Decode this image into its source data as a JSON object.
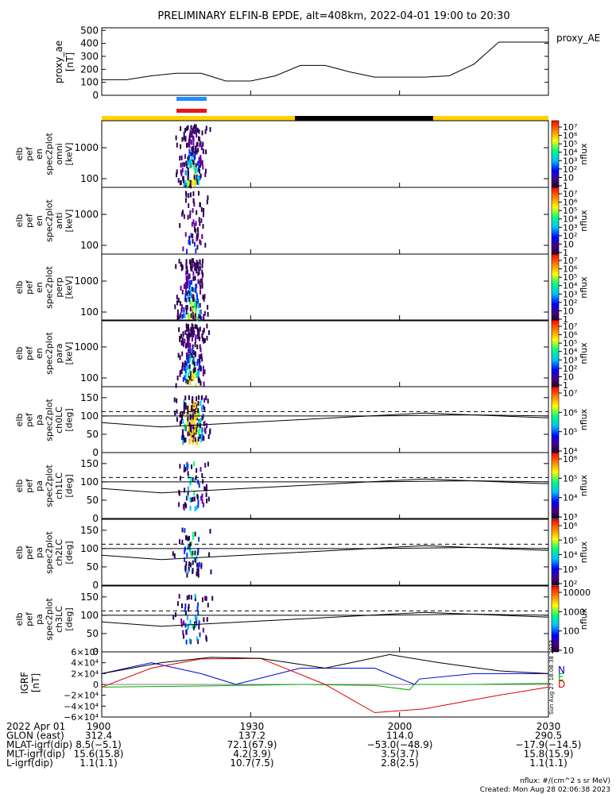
{
  "title": "PRELIMINARY ELFIN-B EPDE, alt=408km, 2022-04-01 19:00 to 20:30",
  "proxy_panel": {
    "ylabel": [
      "proxy_ae",
      "[nT]"
    ],
    "legend": "proxy_AE",
    "yticks": [
      "500",
      "400",
      "300",
      "200",
      "100",
      "0"
    ],
    "ylim": [
      0,
      520
    ]
  },
  "indicator_bars": [
    {
      "color": "#1f8fff",
      "label": ""
    },
    {
      "color": "#e8141c",
      "label": ""
    }
  ],
  "shadow_bar": {
    "sunlit_color": "#ffd200",
    "eclipse_color": "#000000"
  },
  "spectrogram_panels": [
    {
      "ylabel": [
        "elb",
        "pef",
        "en",
        "spec2plot",
        "omni",
        "[keV]"
      ],
      "yticks": [
        "1000",
        "100"
      ],
      "cb_ticks": [
        "10⁷",
        "10⁶",
        "10⁵",
        "10⁴",
        "10³",
        "10²",
        "10",
        "1"
      ],
      "cb_label": "nflux"
    },
    {
      "ylabel": [
        "elb",
        "pef",
        "en",
        "spec2plot",
        "anti",
        "[keV]"
      ],
      "yticks": [
        "1000",
        "100"
      ],
      "cb_ticks": [
        "10⁷",
        "10⁶",
        "10⁵",
        "10⁴",
        "10³",
        "10²",
        "10",
        "1"
      ],
      "cb_label": "nflux"
    },
    {
      "ylabel": [
        "elb",
        "pef",
        "en",
        "spec2plot",
        "perp",
        "[keV]"
      ],
      "yticks": [
        "1000",
        "100"
      ],
      "cb_ticks": [
        "10⁷",
        "10⁶",
        "10⁵",
        "10⁴",
        "10³",
        "10²",
        "10",
        "1"
      ],
      "cb_label": "nflux"
    },
    {
      "ylabel": [
        "elb",
        "pef",
        "en",
        "spec2plot",
        "para",
        "[keV]"
      ],
      "yticks": [
        "1000",
        "100"
      ],
      "cb_ticks": [
        "10⁷",
        "10⁶",
        "10⁵",
        "10⁴",
        "10³",
        "10²",
        "10",
        "1"
      ],
      "cb_label": "nflux"
    }
  ],
  "pitch_panels": [
    {
      "ylabel": [
        "elb",
        "pef",
        "pa",
        "spec2plot",
        "ch0LC",
        "[deg]"
      ],
      "yticks": [
        "150",
        "100",
        "50",
        "0"
      ],
      "cb_ticks": [
        "10⁷",
        "10⁶",
        "10⁵",
        "10⁴"
      ],
      "cb_label": "nflux"
    },
    {
      "ylabel": [
        "elb",
        "pef",
        "pa",
        "spec2plot",
        "ch1LC",
        "[deg]"
      ],
      "yticks": [
        "150",
        "100",
        "50",
        "0"
      ],
      "cb_ticks": [
        "10⁶",
        "10⁵",
        "10⁴",
        "10³"
      ],
      "cb_label": "nflux"
    },
    {
      "ylabel": [
        "elb",
        "pef",
        "pa",
        "spec2plot",
        "ch2LC",
        "[deg]"
      ],
      "yticks": [
        "150",
        "100",
        "50",
        "0"
      ],
      "cb_ticks": [
        "10⁶",
        "10⁵",
        "10⁴",
        "10³",
        "10²"
      ],
      "cb_label": "nflux"
    },
    {
      "ylabel": [
        "elb",
        "pef",
        "pa",
        "spec2plot",
        "ch3LC",
        "[deg]"
      ],
      "yticks": [
        "150",
        "100",
        "50",
        "0"
      ],
      "cb_ticks": [
        "10000",
        "1000",
        "100",
        "10"
      ],
      "cb_label": "nflux"
    }
  ],
  "igrf_panel": {
    "ylabel": [
      "IGRF",
      "[nT]"
    ],
    "yticks": [
      "6×10⁴",
      "4×10⁴",
      "2×10⁴",
      "0",
      "−2×10⁴",
      "−4×10⁴",
      "−6×10⁴"
    ],
    "legend": [
      {
        "label": "N",
        "color": "#0000dd"
      },
      {
        "label": "E",
        "color": "#00aa00"
      },
      {
        "label": "D",
        "color": "#dd0000"
      }
    ],
    "stamp": "Sun Aug 27 18:08:38 2023"
  },
  "x_axis": {
    "tick_labels": [
      "1900",
      "1930",
      "2000",
      "2030"
    ],
    "rows": [
      {
        "label": "2022 Apr 01",
        "values": [
          "1900",
          "1930",
          "2000",
          "2030"
        ]
      },
      {
        "label": "GLON (east)",
        "values": [
          "312.4",
          "137.2",
          "114.0",
          "290.5"
        ]
      },
      {
        "label": "MLAT-igrf(dip)",
        "values": [
          "8.5(−5.1)",
          "72.1(67.9)",
          "−53.0(−48.9)",
          "−17.9(−14.5)"
        ]
      },
      {
        "label": "MLT-igrf(dip)",
        "values": [
          "15.6(15.8)",
          "4.2(3.9)",
          "3.5(3.7)",
          "15.8(15.9)"
        ]
      },
      {
        "label": "L-igrf(dip)",
        "values": [
          "1.1(1.1)",
          "10.7(7.5)",
          "2.8(2.5)",
          "1.1(1.1)"
        ]
      }
    ]
  },
  "footer": {
    "units": "nflux: #/(cm^2 s sr MeV)",
    "created": "Created: Mon Aug 28 02:06:38 2023"
  },
  "chart_data": {
    "type": "line",
    "title": "PRELIMINARY ELFIN-B EPDE, alt=408km, 2022-04-01 19:00 to 20:30",
    "x_range": [
      "19:00",
      "20:30"
    ],
    "series": [
      {
        "name": "proxy_AE",
        "x_min": [
          0,
          5,
          10,
          15,
          20,
          25,
          30,
          35,
          40,
          45,
          50,
          55,
          60,
          65,
          70,
          75,
          80,
          85,
          90
        ],
        "values": [
          120,
          120,
          150,
          170,
          170,
          110,
          110,
          150,
          230,
          230,
          180,
          140,
          140,
          140,
          150,
          240,
          410,
          410,
          410
        ]
      },
      {
        "name": "N",
        "x_min": [
          0,
          10,
          20,
          27,
          40,
          55,
          63,
          64,
          75,
          90
        ],
        "values": [
          20000,
          40000,
          20000,
          0,
          30000,
          30000,
          0,
          10000,
          20000,
          20000
        ]
      },
      {
        "name": "E",
        "x_min": [
          0,
          20,
          40,
          55,
          62,
          63,
          75,
          90
        ],
        "values": [
          -5000,
          -3000,
          0,
          -2000,
          -10000,
          0,
          0,
          2000
        ]
      },
      {
        "name": "D",
        "x_min": [
          0,
          10,
          20,
          32,
          45,
          55,
          65,
          80,
          90
        ],
        "values": [
          -5000,
          30000,
          47000,
          48000,
          0,
          -52000,
          -45000,
          -20000,
          -5000
        ]
      },
      {
        "name": "total",
        "x_min": [
          0,
          12,
          22,
          32,
          45,
          58,
          68,
          80,
          90
        ],
        "values": [
          20000,
          40000,
          50000,
          48000,
          30000,
          55000,
          40000,
          25000,
          20000
        ]
      }
    ],
    "grid": false
  }
}
